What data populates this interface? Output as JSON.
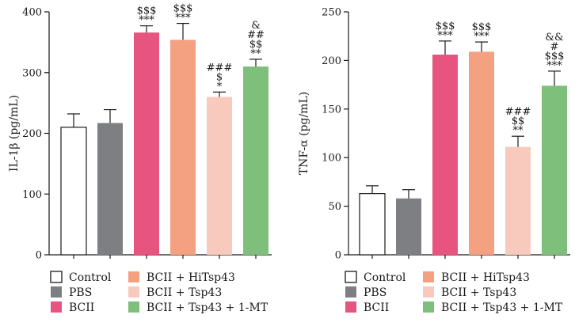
{
  "legend": {
    "items": [
      {
        "label": "Control",
        "color": "#ffffff"
      },
      {
        "label": "PBS",
        "color": "#7d7f82"
      },
      {
        "label": "BCII",
        "color": "#e75480"
      },
      {
        "label": "BCII + HiTsp43",
        "color": "#f4a181"
      },
      {
        "label": "BCII + Tsp43",
        "color": "#f8cabd"
      },
      {
        "label": "BCII + Tsp43 + 1-MT",
        "color": "#7dbf7b"
      }
    ]
  },
  "chart_data": [
    {
      "type": "bar",
      "title": "",
      "xlabel": "",
      "ylabel": "IL-1β (pg/mL)",
      "ylim": [
        0,
        400
      ],
      "yticks": [
        "0",
        "100",
        "200",
        "300",
        "400"
      ],
      "categories": [
        "Control",
        "PBS",
        "BCII",
        "BCII + HiTsp43",
        "BCII + Tsp43",
        "BCII + Tsp43 + 1-MT"
      ],
      "values": [
        210,
        217,
        366,
        354,
        260,
        310
      ],
      "errors": [
        22,
        22,
        11,
        27,
        8,
        12
      ],
      "colors": [
        "#ffffff",
        "#7d7f82",
        "#e75480",
        "#f4a181",
        "#f8cabd",
        "#7dbf7b"
      ],
      "annotations": [
        [],
        [],
        [
          "$$$",
          "***"
        ],
        [
          "$$$",
          "***"
        ],
        [
          "###",
          "$",
          "*"
        ],
        [
          "&",
          "##",
          "$$",
          "**"
        ]
      ]
    },
    {
      "type": "bar",
      "title": "",
      "xlabel": "",
      "ylabel": "TNF-α (pg/mL)",
      "ylim": [
        0,
        250
      ],
      "yticks": [
        "0",
        "50",
        "100",
        "150",
        "200",
        "250"
      ],
      "categories": [
        "Control",
        "PBS",
        "BCII",
        "BCII + HiTsp43",
        "BCII + Tsp43",
        "BCII + Tsp43 + 1-MT"
      ],
      "values": [
        63,
        58,
        206,
        209,
        111,
        174
      ],
      "errors": [
        8,
        9,
        14,
        10,
        11,
        15
      ],
      "colors": [
        "#ffffff",
        "#7d7f82",
        "#e75480",
        "#f4a181",
        "#f8cabd",
        "#7dbf7b"
      ],
      "annotations": [
        [],
        [],
        [
          "$$$",
          "***"
        ],
        [
          "$$$",
          "***"
        ],
        [
          "###",
          "$$",
          "**"
        ],
        [
          "&&",
          "#",
          "$$$",
          "***"
        ]
      ]
    }
  ]
}
